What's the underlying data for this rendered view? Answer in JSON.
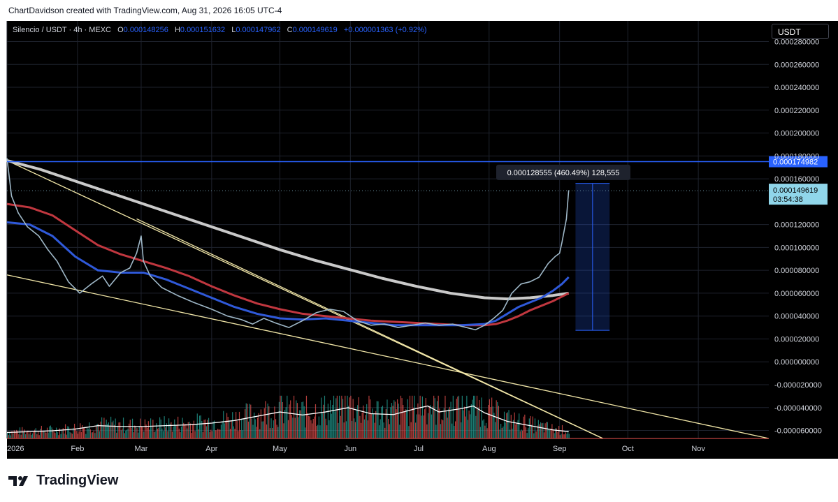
{
  "header": {
    "credit": "ChartDavidson created with TradingView.com, Aug 31, 2026 16:05 UTC-4",
    "symbol": "Silencio / USDT · 4h · MEXC",
    "open_label": "O",
    "open": "0.000148256",
    "high_label": "H",
    "high": "0.000151632",
    "low_label": "L",
    "low": "0.000147962",
    "close_label": "C",
    "close": "0.000149619",
    "change": "+0.000001363 (+0.92%)"
  },
  "currency_button": "USDT",
  "logo_text": "TradingView",
  "colors": {
    "background": "#000000",
    "ema_fast": "#2f59d9",
    "ema_mid": "#c0373f",
    "ema_slow": "#c9c9c9",
    "trendline": "#f2e7a8",
    "resistance": "#2962ff",
    "volume_up": "#26a69a",
    "volume_down": "#ef5350",
    "candles": "#9fb8c8"
  },
  "chart_data": {
    "type": "line",
    "title": "Silencio / USDT · 4h · MEXC",
    "x_ticks": [
      "2026",
      "Feb",
      "Mar",
      "Apr",
      "May",
      "Jun",
      "Jul",
      "Aug",
      "Sep",
      "Oct",
      "Nov"
    ],
    "x_tick_days": [
      0,
      31,
      59,
      90,
      120,
      151,
      181,
      212,
      243,
      273,
      304
    ],
    "xlim_days": [
      0,
      335
    ],
    "y_ticks": [
      "0.000280000",
      "0.000260000",
      "0.000240000",
      "0.000220000",
      "0.000200000",
      "0.000180000",
      "0.000160000",
      "0.000120000",
      "0.000100000",
      "0.000080000",
      "0.000060000",
      "0.000040000",
      "0.000020000",
      "0.000000000",
      "-0.000020000",
      "-0.000040000",
      "-0.000060000"
    ],
    "y_tick_values": [
      0.00028,
      0.00026,
      0.00024,
      0.00022,
      0.0002,
      0.00018,
      0.00016,
      0.00012,
      0.0001,
      8e-05,
      6e-05,
      4e-05,
      2e-05,
      0,
      -2e-05,
      -4e-05,
      -6e-05
    ],
    "ylim": [
      -6.7e-05,
      0.000298
    ],
    "resistance_level": {
      "value": 0.000174982,
      "label": "0.000174982"
    },
    "last_price": {
      "value": 0.000149619,
      "label": "0.000149619",
      "countdown": "03:54:38"
    },
    "measure": {
      "x_days": [
        250,
        265
      ],
      "y_from": 2.75e-05,
      "y_to": 0.000156,
      "label": "0.000128555 (460.49%) 128,555"
    },
    "series": [
      {
        "kind": "price",
        "x": [
          0,
          2,
          5,
          9,
          14,
          18,
          22,
          27,
          32,
          37,
          42,
          45,
          50,
          54,
          57,
          59,
          60,
          63,
          68,
          75,
          82,
          90,
          97,
          103,
          108,
          113,
          118,
          124,
          130,
          136,
          142,
          148,
          154,
          160,
          166,
          172,
          178,
          184,
          190,
          196,
          202,
          206,
          210,
          214,
          218,
          222,
          226,
          230,
          234,
          238,
          241,
          243,
          244,
          246,
          247
        ],
        "y": [
          0.000178,
          0.000145,
          0.00013,
          0.000118,
          0.00011,
          9.8e-05,
          8.8e-05,
          7e-05,
          6e-05,
          6.8e-05,
          7.5e-05,
          6.6e-05,
          7.8e-05,
          8.2e-05,
          9.5e-05,
          0.00011,
          8.8e-05,
          7.5e-05,
          6.5e-05,
          5.8e-05,
          5.2e-05,
          4.6e-05,
          4e-05,
          3.7e-05,
          3.3e-05,
          3.8e-05,
          3.4e-05,
          3e-05,
          3.6e-05,
          4.3e-05,
          4.6e-05,
          4.4e-05,
          3.6e-05,
          3.2e-05,
          3.3e-05,
          3e-05,
          3.2e-05,
          3.4e-05,
          3.2e-05,
          3.3e-05,
          3e-05,
          2.8e-05,
          3.2e-05,
          3.8e-05,
          4.5e-05,
          6e-05,
          6.8e-05,
          7e-05,
          7.4e-05,
          8.6e-05,
          9.2e-05,
          9.5e-05,
          0.000104,
          0.000125,
          0.00015
        ]
      },
      {
        "kind": "ema_fast",
        "x": [
          0,
          10,
          20,
          30,
          40,
          50,
          60,
          70,
          80,
          90,
          100,
          110,
          120,
          130,
          140,
          150,
          160,
          170,
          180,
          190,
          200,
          210,
          215,
          220,
          225,
          230,
          235,
          240,
          244,
          247
        ],
        "y": [
          0.000122,
          0.00012,
          0.00011,
          9.2e-05,
          8e-05,
          7.8e-05,
          7.8e-05,
          7.2e-05,
          6.4e-05,
          5.6e-05,
          4.8e-05,
          4.2e-05,
          3.8e-05,
          3.7e-05,
          3.8e-05,
          3.6e-05,
          3.4e-05,
          3.2e-05,
          3.2e-05,
          3.2e-05,
          3.2e-05,
          3.3e-05,
          3.6e-05,
          4.2e-05,
          4.8e-05,
          5.2e-05,
          5.6e-05,
          6.2e-05,
          6.8e-05,
          7.4e-05
        ]
      },
      {
        "kind": "ema_mid",
        "x": [
          0,
          10,
          20,
          30,
          40,
          50,
          60,
          70,
          80,
          90,
          100,
          110,
          120,
          130,
          140,
          150,
          160,
          170,
          180,
          190,
          200,
          210,
          215,
          220,
          225,
          230,
          235,
          240,
          244,
          247
        ],
        "y": [
          0.000138,
          0.000135,
          0.000128,
          0.000115,
          0.000102,
          9.4e-05,
          8.8e-05,
          8.2e-05,
          7.5e-05,
          6.6e-05,
          5.8e-05,
          5.1e-05,
          4.6e-05,
          4.2e-05,
          4e-05,
          3.8e-05,
          3.6e-05,
          3.5e-05,
          3.4e-05,
          3.3e-05,
          3.2e-05,
          3.2e-05,
          3.3e-05,
          3.6e-05,
          4e-05,
          4.5e-05,
          4.9e-05,
          5.3e-05,
          5.7e-05,
          6e-05
        ]
      },
      {
        "kind": "ema_slow",
        "x": [
          0,
          15,
          30,
          45,
          60,
          75,
          90,
          105,
          120,
          135,
          150,
          165,
          180,
          195,
          210,
          220,
          230,
          240,
          247
        ],
        "y": [
          0.000176,
          0.000168,
          0.000158,
          0.000148,
          0.000138,
          0.000128,
          0.000118,
          0.000108,
          9.8e-05,
          8.9e-05,
          8.1e-05,
          7.3e-05,
          6.6e-05,
          6e-05,
          5.6e-05,
          5.5e-05,
          5.6e-05,
          5.8e-05,
          6e-05
        ]
      }
    ],
    "trendlines": [
      {
        "x": [
          0,
          262
        ],
        "y": [
          0.000176,
          -6.7e-05
        ]
      },
      {
        "x": [
          0,
          335
        ],
        "y": [
          7.6e-05,
          -6.7e-05
        ]
      },
      {
        "x": [
          57,
          262
        ],
        "y": [
          0.000125,
          -6.7e-05
        ]
      }
    ],
    "volume": {
      "ma_x": [
        0,
        10,
        20,
        30,
        40,
        50,
        60,
        70,
        80,
        90,
        100,
        110,
        120,
        130,
        140,
        150,
        160,
        170,
        180,
        185,
        190,
        200,
        205,
        210,
        220,
        230,
        240,
        247
      ],
      "ma_y": [
        0.14,
        0.16,
        0.18,
        0.22,
        0.3,
        0.28,
        0.28,
        0.3,
        0.32,
        0.36,
        0.42,
        0.52,
        0.62,
        0.55,
        0.62,
        0.72,
        0.58,
        0.56,
        0.7,
        0.76,
        0.62,
        0.7,
        0.76,
        0.6,
        0.4,
        0.3,
        0.2,
        0.16
      ]
    }
  }
}
